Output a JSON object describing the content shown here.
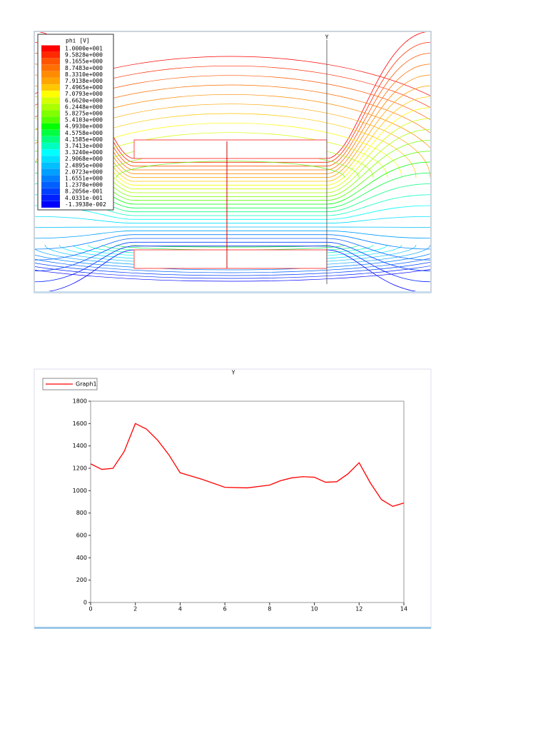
{
  "chart_data": [
    {
      "type": "contour",
      "title": "phi [V]",
      "axis_label": "Y",
      "levels": [
        {
          "value": 10,
          "label": "1.0000e+001"
        },
        {
          "value": 9.5828,
          "label": "9.5828e+000"
        },
        {
          "value": 9.1655,
          "label": "9.1655e+000"
        },
        {
          "value": 8.7483,
          "label": "8.7483e+000"
        },
        {
          "value": 8.331,
          "label": "8.3310e+000"
        },
        {
          "value": 7.9138,
          "label": "7.9138e+000"
        },
        {
          "value": 7.4965,
          "label": "7.4965e+000"
        },
        {
          "value": 7.0793,
          "label": "7.0793e+000"
        },
        {
          "value": 6.662,
          "label": "6.6620e+000"
        },
        {
          "value": 6.2448,
          "label": "6.2448e+000"
        },
        {
          "value": 5.8275,
          "label": "5.8275e+000"
        },
        {
          "value": 5.4103,
          "label": "5.4103e+000"
        },
        {
          "value": 4.993,
          "label": "4.9930e+000"
        },
        {
          "value": 4.5758,
          "label": "4.5758e+000"
        },
        {
          "value": 4.1585,
          "label": "4.1585e+000"
        },
        {
          "value": 3.7413,
          "label": "3.7413e+000"
        },
        {
          "value": 3.324,
          "label": "3.3240e+000"
        },
        {
          "value": 2.9068,
          "label": "2.9068e+000"
        },
        {
          "value": 2.4895,
          "label": "2.4895e+000"
        },
        {
          "value": 2.0723,
          "label": "2.0723e+000"
        },
        {
          "value": 1.6551,
          "label": "1.6551e+000"
        },
        {
          "value": 1.2378,
          "label": "1.2378e+000"
        },
        {
          "value": 0.82056,
          "label": "8.2056e-001"
        },
        {
          "value": 0.40331,
          "label": "4.0331e-001"
        },
        {
          "value": -0.013938,
          "label": "-1.3938e-002"
        }
      ],
      "colors": [
        "#ff0000",
        "#ff2a00",
        "#ff5500",
        "#ff7000",
        "#ff8c00",
        "#ffa500",
        "#ffc800",
        "#ffff00",
        "#d4ff00",
        "#aaff00",
        "#7fff00",
        "#55ff00",
        "#00ff00",
        "#00ff40",
        "#00ff80",
        "#00ffbf",
        "#00ffff",
        "#00e0ff",
        "#00c0ff",
        "#00a0ff",
        "#0080ff",
        "#0060ff",
        "#0040ff",
        "#0020ff",
        "#0000ff"
      ]
    },
    {
      "type": "line",
      "title": "Y",
      "x": [
        0,
        0.5,
        1,
        1.5,
        2,
        2.5,
        3,
        3.5,
        4,
        5,
        6,
        7,
        8,
        8.5,
        9,
        9.5,
        10,
        10.5,
        11,
        11.5,
        12,
        12.5,
        13,
        13.5,
        14
      ],
      "series": [
        {
          "name": "Graph1",
          "color": "#ff0000",
          "values": [
            1240,
            1190,
            1200,
            1350,
            1600,
            1550,
            1450,
            1320,
            1160,
            1100,
            1030,
            1025,
            1050,
            1090,
            1115,
            1125,
            1120,
            1075,
            1080,
            1150,
            1250,
            1070,
            920,
            860,
            890
          ]
        }
      ],
      "xlim": [
        0,
        14
      ],
      "xticks": [
        0,
        2,
        4,
        6,
        8,
        10,
        12,
        14
      ],
      "ylim": [
        0,
        1800
      ],
      "yticks": [
        0,
        200,
        400,
        600,
        800,
        1000,
        1200,
        1400,
        1600,
        1800
      ]
    }
  ]
}
